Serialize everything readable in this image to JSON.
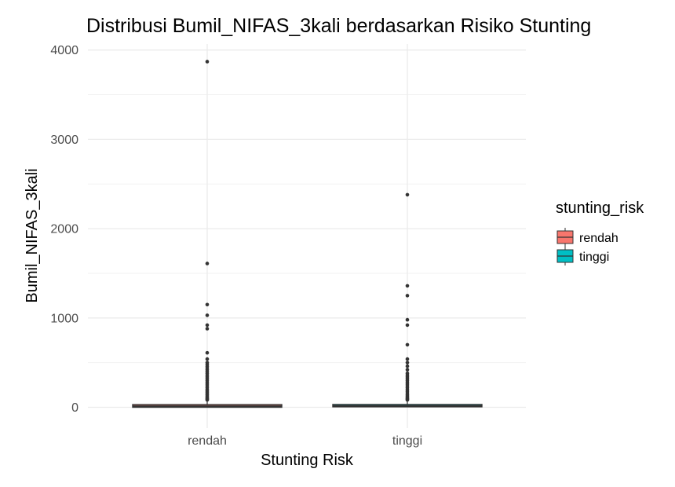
{
  "chart_data": {
    "type": "boxplot",
    "title": "Distribusi Bumil_NIFAS_3kali berdasarkan Risiko Stunting",
    "xlabel": "Stunting Risk",
    "ylabel": "Bumil_NIFAS_3kali",
    "categories": [
      "rendah",
      "tinggi"
    ],
    "ylim": [
      -350,
      4050
    ],
    "yticks": [
      0,
      1000,
      2000,
      3000,
      4000
    ],
    "grid": true,
    "legend": {
      "title": "stunting_risk",
      "position": "right",
      "entries": [
        {
          "label": "rendah",
          "color": "#F8766D"
        },
        {
          "label": "tinggi",
          "color": "#00BFC4"
        }
      ]
    },
    "series": [
      {
        "category": "rendah",
        "color": "#F8766D",
        "stats": {
          "min": 0,
          "q1": 0,
          "median": 12,
          "q3": 30,
          "max": 75
        },
        "outliers": [
          3870,
          1610,
          1150,
          1030,
          920,
          880,
          610,
          540,
          500,
          480,
          460,
          440,
          420,
          400,
          380,
          360,
          340,
          320,
          300,
          280,
          260,
          240,
          220,
          200,
          185,
          170,
          155,
          140,
          125,
          110,
          100,
          90,
          82
        ]
      },
      {
        "category": "tinggi",
        "color": "#00BFC4",
        "stats": {
          "min": 0,
          "q1": 5,
          "median": 15,
          "q3": 30,
          "max": 75
        },
        "outliers": [
          2380,
          1360,
          1250,
          980,
          920,
          700,
          540,
          500,
          460,
          420,
          380,
          360,
          340,
          320,
          300,
          280,
          260,
          240,
          220,
          200,
          180,
          160,
          140,
          125,
          110,
          100,
          90,
          82
        ]
      }
    ]
  }
}
